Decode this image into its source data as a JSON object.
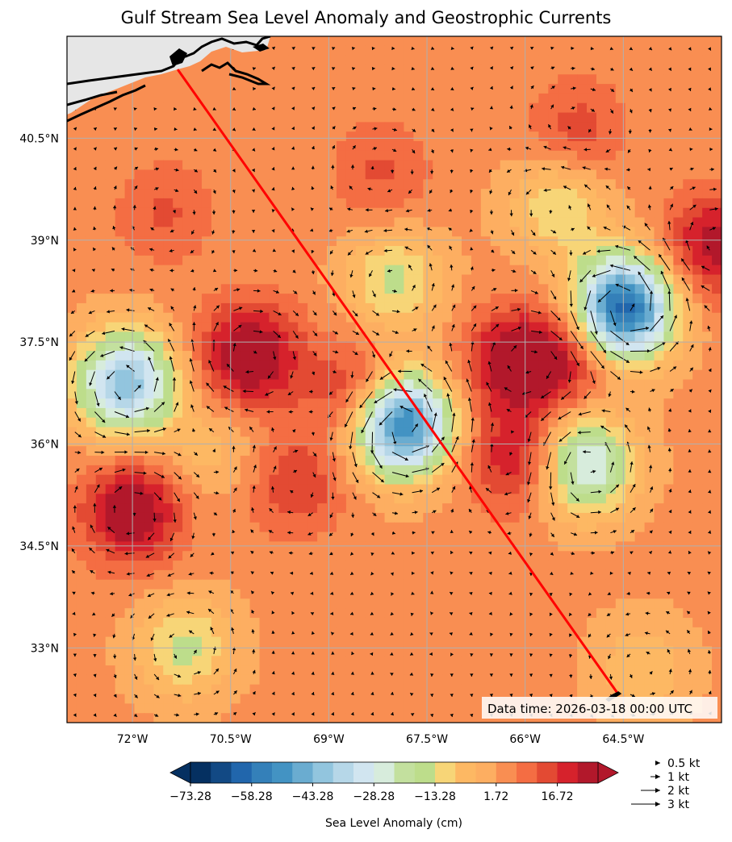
{
  "title": "Gulf Stream Sea Level Anomaly and Geostrophic Currents",
  "chart_data": {
    "type": "map-contour",
    "title": "Gulf Stream Sea Level Anomaly and Geostrophic Currents",
    "lon_range": [
      -73.0,
      -63.0
    ],
    "lat_range": [
      31.9,
      42.0
    ],
    "lon_ticks": [
      {
        "value": -72.0,
        "label": "72°W"
      },
      {
        "value": -70.5,
        "label": "70.5°W"
      },
      {
        "value": -69.0,
        "label": "69°W"
      },
      {
        "value": -67.5,
        "label": "67.5°W"
      },
      {
        "value": -66.0,
        "label": "66°W"
      },
      {
        "value": -64.5,
        "label": "64.5°W"
      }
    ],
    "lat_ticks": [
      {
        "value": 40.5,
        "label": "40.5°N"
      },
      {
        "value": 39.0,
        "label": "39°N"
      },
      {
        "value": 37.5,
        "label": "37.5°N"
      },
      {
        "value": 36.0,
        "label": "36°N"
      },
      {
        "value": 34.5,
        "label": "34.5°N"
      },
      {
        "value": 33.0,
        "label": "33°N"
      }
    ],
    "grid": true,
    "data_time": "Data time: 2026-03-18 00:00 UTC",
    "track": {
      "color": "#ff0000",
      "start": [
        -71.3,
        41.5
      ],
      "end": [
        -64.6,
        32.35
      ]
    },
    "colorbar": {
      "label": "Sea Level Anomaly (cm)",
      "ticks": [
        "−73.28",
        "−58.28",
        "−43.28",
        "−28.28",
        "−13.28",
        "1.72",
        "16.72"
      ],
      "colors": [
        "#053061",
        "#124984",
        "#2166ac",
        "#3480b9",
        "#4393c3",
        "#6aacd0",
        "#92c5de",
        "#b6d7e8",
        "#d1e5f0",
        "#d7ecdc",
        "#c3e09e",
        "#bddd8b",
        "#f7d577",
        "#fdb863",
        "#fdae61",
        "#f98e52",
        "#f46d43",
        "#e34a33",
        "#d6222c",
        "#b2182b"
      ],
      "extend": "both"
    },
    "anomaly_features": [
      {
        "lon": -72.0,
        "lat": 35.0,
        "value": 28
      },
      {
        "lon": -70.2,
        "lat": 37.3,
        "value": 30
      },
      {
        "lon": -68.5,
        "lat": 36.7,
        "value": 22
      },
      {
        "lon": -66.2,
        "lat": 37.2,
        "value": 24
      },
      {
        "lon": -66.1,
        "lat": 35.8,
        "value": 22
      },
      {
        "lon": -65.4,
        "lat": 37.3,
        "value": 20
      },
      {
        "lon": -63.1,
        "lat": 38.9,
        "value": 24
      },
      {
        "lon": -65.2,
        "lat": 40.6,
        "value": 12
      },
      {
        "lon": -68.2,
        "lat": 40.0,
        "value": 10
      },
      {
        "lon": -71.5,
        "lat": 39.4,
        "value": 10
      },
      {
        "lon": -69.5,
        "lat": 35.4,
        "value": 14
      },
      {
        "lon": -72.1,
        "lat": 36.9,
        "value": -50
      },
      {
        "lon": -67.9,
        "lat": 36.3,
        "value": -70
      },
      {
        "lon": -64.5,
        "lat": 38.0,
        "value": -72
      },
      {
        "lon": -65.1,
        "lat": 35.7,
        "value": -38
      },
      {
        "lon": -68.0,
        "lat": 38.4,
        "value": -20
      },
      {
        "lon": -65.5,
        "lat": 39.5,
        "value": -18
      },
      {
        "lon": -71.2,
        "lat": 33.0,
        "value": -20
      },
      {
        "lon": -64.2,
        "lat": 32.7,
        "value": -12
      },
      {
        "lon": -70.8,
        "lat": 35.9,
        "value": -10
      }
    ],
    "quiver_legend": [
      {
        "label": "0.5 kt",
        "speed": 0.5
      },
      {
        "label": "1 kt",
        "speed": 1
      },
      {
        "label": "2 kt",
        "speed": 2
      },
      {
        "label": "3 kt",
        "speed": 3
      }
    ]
  }
}
